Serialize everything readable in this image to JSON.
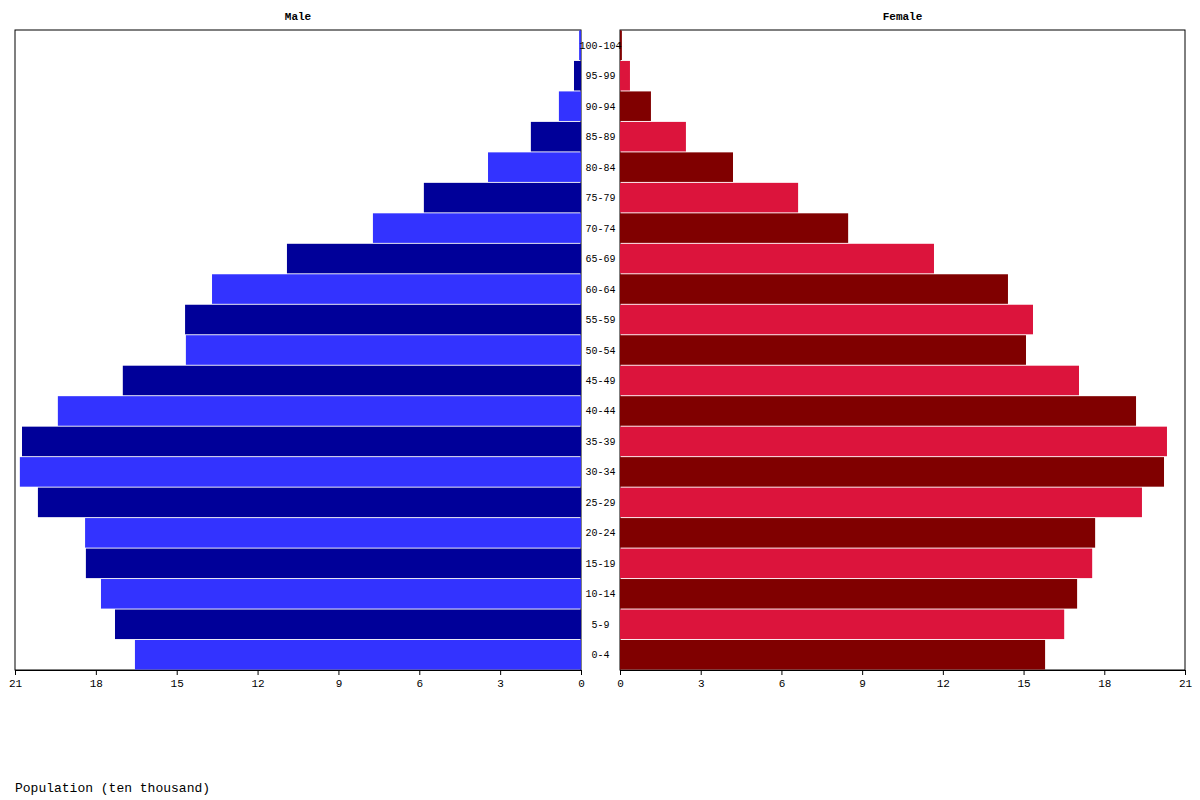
{
  "chart_data": {
    "type": "bar",
    "orientation": "horizontal",
    "xlabel": "Population (ten thousand)",
    "categories": [
      "0-4",
      "5-9",
      "10-14",
      "15-19",
      "20-24",
      "25-29",
      "30-34",
      "35-39",
      "40-44",
      "45-49",
      "50-54",
      "55-59",
      "60-64",
      "65-69",
      "70-74",
      "75-79",
      "80-84",
      "85-89",
      "90-94",
      "95-99",
      "100-104"
    ],
    "series": [
      {
        "name": "Male",
        "colors": [
          "#3333ff",
          "#000099",
          "#3333ff",
          "#000099",
          "#3333ff",
          "#000099",
          "#3333ff",
          "#000099",
          "#3333ff",
          "#000099",
          "#3333ff",
          "#000099",
          "#3333ff",
          "#000099",
          "#3333ff",
          "#000099",
          "#3333ff",
          "#000099",
          "#3333ff",
          "#000099",
          "#3333ff"
        ],
        "values": [
          16.55,
          17.29,
          17.81,
          18.37,
          18.4,
          20.15,
          20.82,
          20.74,
          19.41,
          17.0,
          14.66,
          14.69,
          13.69,
          10.91,
          7.72,
          5.83,
          3.45,
          1.86,
          0.82,
          0.26,
          0.07
        ]
      },
      {
        "name": "Female",
        "colors": [
          "#800000",
          "#dc143c",
          "#800000",
          "#dc143c",
          "#800000",
          "#dc143c",
          "#800000",
          "#dc143c",
          "#800000",
          "#dc143c",
          "#800000",
          "#dc143c",
          "#800000",
          "#dc143c",
          "#800000",
          "#dc143c",
          "#800000",
          "#dc143c",
          "#800000",
          "#dc143c",
          "#800000"
        ],
        "values": [
          15.8,
          16.51,
          16.99,
          17.55,
          17.66,
          19.4,
          20.22,
          20.33,
          19.18,
          17.06,
          15.09,
          15.35,
          14.42,
          11.67,
          8.48,
          6.62,
          4.2,
          2.45,
          1.15,
          0.37,
          0.07
        ]
      }
    ],
    "xlim": [
      0,
      21
    ],
    "xticks": [
      0,
      3,
      6,
      9,
      12,
      15,
      18,
      21
    ],
    "grid": false
  }
}
